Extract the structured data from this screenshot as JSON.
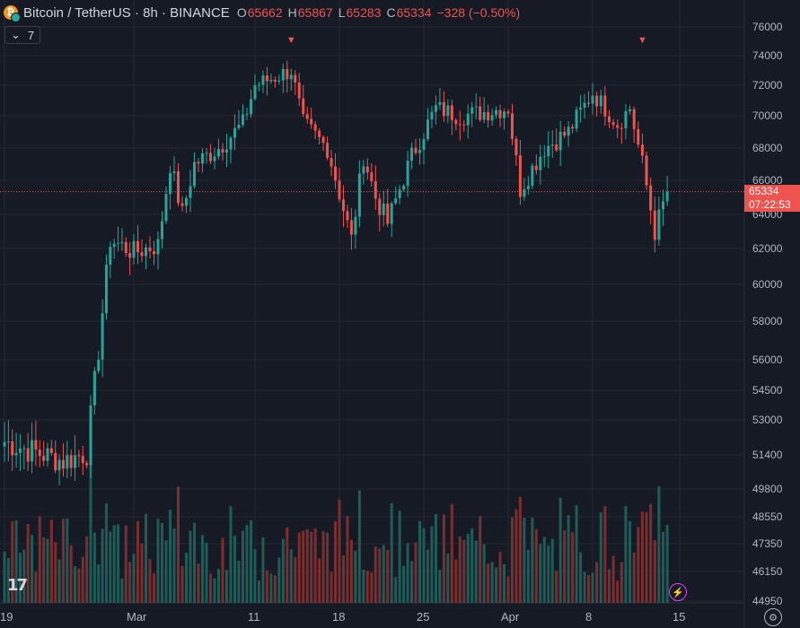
{
  "header": {
    "symbol": "Bitcoin / TetherUS · 8h · BINANCE",
    "open_label": "O",
    "open": "65662",
    "high_label": "H",
    "high": "65867",
    "low_label": "L",
    "low": "65283",
    "close_label": "C",
    "close": "65334",
    "change": "−328 (−0.50%)"
  },
  "indicator_toggle": {
    "count": "7",
    "icon": "chevron-down-icon"
  },
  "price_tag": {
    "price": "65334",
    "countdown": "07:22:53"
  },
  "colors": {
    "up": "#26a69a",
    "down": "#ef5350",
    "bg": "#161a24",
    "grid": "#232834"
  },
  "chart_data": {
    "type": "candlestick",
    "x_ticks": [
      "19",
      "Mar",
      "11",
      "18",
      "25",
      "Apr",
      "8",
      "15"
    ],
    "y_ticks": [
      "76000",
      "74000",
      "72000",
      "70000",
      "68000",
      "66000",
      "64000",
      "62000",
      "60000",
      "58000",
      "56000",
      "54500",
      "53000",
      "51400",
      "49800",
      "48550",
      "47350",
      "46150",
      "44950"
    ],
    "last_price": 65334,
    "grid": true,
    "markers": [
      {
        "date": "Mar 14",
        "symbol": "▼"
      },
      {
        "date": "Apr 12",
        "symbol": "▼"
      }
    ],
    "anchors": [
      {
        "date": "Feb 19",
        "close": 52000
      },
      {
        "date": "Feb 24",
        "close": 51100
      },
      {
        "date": "Feb 26",
        "close": 51500
      },
      {
        "date": "Feb 27",
        "close": 56500
      },
      {
        "date": "Feb 28",
        "close": 62500
      },
      {
        "date": "Mar 1",
        "close": 61800
      },
      {
        "date": "Mar 3",
        "close": 62200
      },
      {
        "date": "Mar 4",
        "close": 67000
      },
      {
        "date": "Mar 5",
        "close": 64000
      },
      {
        "date": "Mar 6",
        "close": 67000
      },
      {
        "date": "Mar 8",
        "close": 68000
      },
      {
        "date": "Mar 10",
        "close": 69500
      },
      {
        "date": "Mar 11",
        "close": 72000
      },
      {
        "date": "Mar 14",
        "close": 73000
      },
      {
        "date": "Mar 15",
        "close": 69500
      },
      {
        "date": "Mar 17",
        "close": 68000
      },
      {
        "date": "Mar 19",
        "close": 62500
      },
      {
        "date": "Mar 20",
        "close": 67500
      },
      {
        "date": "Mar 21",
        "close": 65000
      },
      {
        "date": "Mar 22",
        "close": 63500
      },
      {
        "date": "Mar 24",
        "close": 67500
      },
      {
        "date": "Mar 26",
        "close": 70500
      },
      {
        "date": "Mar 28",
        "close": 70000
      },
      {
        "date": "Apr 1",
        "close": 70500
      },
      {
        "date": "Apr 2",
        "close": 65500
      },
      {
        "date": "Apr 4",
        "close": 68000
      },
      {
        "date": "Apr 6",
        "close": 69000
      },
      {
        "date": "Apr 8",
        "close": 71500
      },
      {
        "date": "Apr 10",
        "close": 69500
      },
      {
        "date": "Apr 11",
        "close": 70500
      },
      {
        "date": "Apr 12",
        "close": 67000
      },
      {
        "date": "Apr 13",
        "close": 63000
      },
      {
        "date": "Apr 14",
        "close": 65334
      }
    ]
  }
}
